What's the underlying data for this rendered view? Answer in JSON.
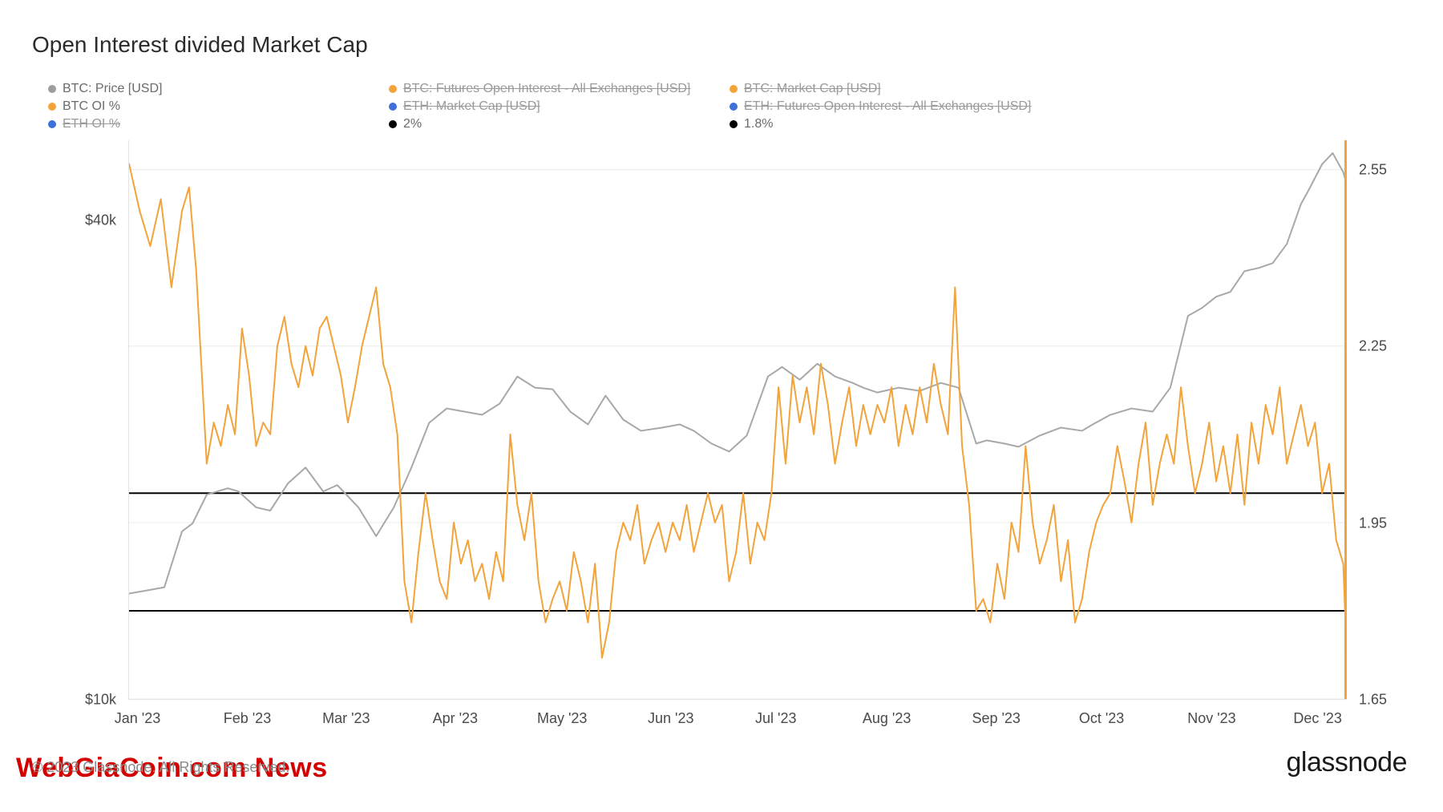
{
  "title": "Open Interest divided Market Cap",
  "watermark": "WebGiaCoin.com News",
  "copyright": "© 2023 Glassnode. All Rights Reserved.",
  "brand": "glassnode",
  "legend_layout": {
    "col_widths_pct": [
      25,
      25,
      25,
      25
    ]
  },
  "legend": [
    [
      {
        "label": "BTC: Price [USD]",
        "color": "#9e9e9e",
        "struck": false
      },
      {
        "label": "BTC: Futures Open Interest - All Exchanges [USD]",
        "color": "#f2a33a",
        "struck": true
      },
      {
        "label": "BTC: Market Cap [USD]",
        "color": "#f2a33a",
        "struck": true
      }
    ],
    [
      {
        "label": "BTC OI %",
        "color": "#f2a33a",
        "struck": false
      },
      {
        "label": "ETH: Market Cap [USD]",
        "color": "#3f6fd8",
        "struck": true
      },
      {
        "label": "ETH: Futures Open Interest - All Exchanges [USD]",
        "color": "#3f6fd8",
        "struck": true
      }
    ],
    [
      {
        "label": "ETH OI %",
        "color": "#3f6fd8",
        "struck": true
      },
      {
        "label": "2%",
        "color": "#000000",
        "struck": false
      },
      {
        "label": "1.8%",
        "color": "#000000",
        "struck": false
      }
    ]
  ],
  "chart": {
    "type": "line",
    "background_color": "#ffffff",
    "grid_color": "#ececec",
    "grid_width": 1,
    "x": {
      "domain": [
        0,
        345
      ],
      "ticks": [
        0,
        31,
        59,
        90,
        120,
        151,
        181,
        212,
        243,
        273,
        304,
        334
      ],
      "labels": [
        "Jan '23",
        "Feb '23",
        "Mar '23",
        "Apr '23",
        "May '23",
        "Jun '23",
        "Jul '23",
        "Aug '23",
        "Sep '23",
        "Oct '23",
        "Nov '23",
        "Dec '23"
      ]
    },
    "y_left": {
      "domain": [
        10000,
        45000
      ],
      "ticks": [
        10000,
        40000
      ],
      "labels": [
        "$10k",
        "$40k"
      ]
    },
    "y_right": {
      "domain": [
        1.65,
        2.6
      ],
      "ticks": [
        1.65,
        1.95,
        2.25,
        2.55
      ],
      "labels": [
        "1.65",
        "1.95",
        "2.25",
        "2.55"
      ]
    },
    "hlines": [
      {
        "value": 2.0,
        "axis": "right",
        "color": "#000000",
        "width": 2
      },
      {
        "value": 1.8,
        "axis": "right",
        "color": "#000000",
        "width": 2
      }
    ],
    "right_accent": {
      "color": "#f2a33a",
      "width": 3
    },
    "series": [
      {
        "name": "BTC: Price [USD]",
        "axis": "left",
        "color": "#a8a8a8",
        "width": 2,
        "points": [
          [
            0,
            16600
          ],
          [
            5,
            16800
          ],
          [
            10,
            17000
          ],
          [
            15,
            20500
          ],
          [
            18,
            21000
          ],
          [
            22,
            22800
          ],
          [
            28,
            23200
          ],
          [
            31,
            23000
          ],
          [
            36,
            22000
          ],
          [
            40,
            21800
          ],
          [
            45,
            23500
          ],
          [
            50,
            24500
          ],
          [
            55,
            23000
          ],
          [
            59,
            23400
          ],
          [
            65,
            22000
          ],
          [
            70,
            20200
          ],
          [
            75,
            22000
          ],
          [
            80,
            24500
          ],
          [
            85,
            27300
          ],
          [
            90,
            28200
          ],
          [
            95,
            28000
          ],
          [
            100,
            27800
          ],
          [
            105,
            28500
          ],
          [
            110,
            30200
          ],
          [
            115,
            29500
          ],
          [
            120,
            29400
          ],
          [
            125,
            28000
          ],
          [
            130,
            27200
          ],
          [
            135,
            29000
          ],
          [
            140,
            27500
          ],
          [
            145,
            26800
          ],
          [
            151,
            27000
          ],
          [
            156,
            27200
          ],
          [
            160,
            26800
          ],
          [
            165,
            26000
          ],
          [
            170,
            25500
          ],
          [
            175,
            26500
          ],
          [
            181,
            30200
          ],
          [
            185,
            30800
          ],
          [
            190,
            30000
          ],
          [
            195,
            31000
          ],
          [
            200,
            30200
          ],
          [
            205,
            29800
          ],
          [
            208,
            29500
          ],
          [
            212,
            29200
          ],
          [
            218,
            29500
          ],
          [
            224,
            29300
          ],
          [
            230,
            29800
          ],
          [
            235,
            29500
          ],
          [
            240,
            26000
          ],
          [
            243,
            26200
          ],
          [
            248,
            26000
          ],
          [
            252,
            25800
          ],
          [
            258,
            26500
          ],
          [
            264,
            27000
          ],
          [
            270,
            26800
          ],
          [
            273,
            27200
          ],
          [
            278,
            27800
          ],
          [
            284,
            28200
          ],
          [
            290,
            28000
          ],
          [
            295,
            29500
          ],
          [
            300,
            34000
          ],
          [
            304,
            34500
          ],
          [
            308,
            35200
          ],
          [
            312,
            35500
          ],
          [
            316,
            36800
          ],
          [
            320,
            37000
          ],
          [
            324,
            37300
          ],
          [
            328,
            38500
          ],
          [
            332,
            41000
          ],
          [
            334,
            41800
          ],
          [
            338,
            43500
          ],
          [
            341,
            44200
          ],
          [
            344,
            43000
          ],
          [
            345,
            42200
          ]
        ]
      },
      {
        "name": "BTC OI %",
        "axis": "right",
        "color": "#f2a33a",
        "width": 2,
        "points": [
          [
            0,
            2.56
          ],
          [
            3,
            2.48
          ],
          [
            6,
            2.42
          ],
          [
            9,
            2.5
          ],
          [
            12,
            2.35
          ],
          [
            15,
            2.48
          ],
          [
            17,
            2.52
          ],
          [
            19,
            2.38
          ],
          [
            22,
            2.05
          ],
          [
            24,
            2.12
          ],
          [
            26,
            2.08
          ],
          [
            28,
            2.15
          ],
          [
            30,
            2.1
          ],
          [
            32,
            2.28
          ],
          [
            34,
            2.2
          ],
          [
            36,
            2.08
          ],
          [
            38,
            2.12
          ],
          [
            40,
            2.1
          ],
          [
            42,
            2.25
          ],
          [
            44,
            2.3
          ],
          [
            46,
            2.22
          ],
          [
            48,
            2.18
          ],
          [
            50,
            2.25
          ],
          [
            52,
            2.2
          ],
          [
            54,
            2.28
          ],
          [
            56,
            2.3
          ],
          [
            58,
            2.25
          ],
          [
            60,
            2.2
          ],
          [
            62,
            2.12
          ],
          [
            64,
            2.18
          ],
          [
            66,
            2.25
          ],
          [
            68,
            2.3
          ],
          [
            70,
            2.35
          ],
          [
            72,
            2.22
          ],
          [
            74,
            2.18
          ],
          [
            76,
            2.1
          ],
          [
            78,
            1.85
          ],
          [
            80,
            1.78
          ],
          [
            82,
            1.9
          ],
          [
            84,
            2.0
          ],
          [
            86,
            1.92
          ],
          [
            88,
            1.85
          ],
          [
            90,
            1.82
          ],
          [
            92,
            1.95
          ],
          [
            94,
            1.88
          ],
          [
            96,
            1.92
          ],
          [
            98,
            1.85
          ],
          [
            100,
            1.88
          ],
          [
            102,
            1.82
          ],
          [
            104,
            1.9
          ],
          [
            106,
            1.85
          ],
          [
            108,
            2.1
          ],
          [
            110,
            1.98
          ],
          [
            112,
            1.92
          ],
          [
            114,
            2.0
          ],
          [
            116,
            1.85
          ],
          [
            118,
            1.78
          ],
          [
            120,
            1.82
          ],
          [
            122,
            1.85
          ],
          [
            124,
            1.8
          ],
          [
            126,
            1.9
          ],
          [
            128,
            1.85
          ],
          [
            130,
            1.78
          ],
          [
            132,
            1.88
          ],
          [
            134,
            1.72
          ],
          [
            136,
            1.78
          ],
          [
            138,
            1.9
          ],
          [
            140,
            1.95
          ],
          [
            142,
            1.92
          ],
          [
            144,
            1.98
          ],
          [
            146,
            1.88
          ],
          [
            148,
            1.92
          ],
          [
            150,
            1.95
          ],
          [
            152,
            1.9
          ],
          [
            154,
            1.95
          ],
          [
            156,
            1.92
          ],
          [
            158,
            1.98
          ],
          [
            160,
            1.9
          ],
          [
            162,
            1.95
          ],
          [
            164,
            2.0
          ],
          [
            166,
            1.95
          ],
          [
            168,
            1.98
          ],
          [
            170,
            1.85
          ],
          [
            172,
            1.9
          ],
          [
            174,
            2.0
          ],
          [
            176,
            1.88
          ],
          [
            178,
            1.95
          ],
          [
            180,
            1.92
          ],
          [
            182,
            2.0
          ],
          [
            184,
            2.18
          ],
          [
            186,
            2.05
          ],
          [
            188,
            2.2
          ],
          [
            190,
            2.12
          ],
          [
            192,
            2.18
          ],
          [
            194,
            2.1
          ],
          [
            196,
            2.22
          ],
          [
            198,
            2.15
          ],
          [
            200,
            2.05
          ],
          [
            202,
            2.12
          ],
          [
            204,
            2.18
          ],
          [
            206,
            2.08
          ],
          [
            208,
            2.15
          ],
          [
            210,
            2.1
          ],
          [
            212,
            2.15
          ],
          [
            214,
            2.12
          ],
          [
            216,
            2.18
          ],
          [
            218,
            2.08
          ],
          [
            220,
            2.15
          ],
          [
            222,
            2.1
          ],
          [
            224,
            2.18
          ],
          [
            226,
            2.12
          ],
          [
            228,
            2.22
          ],
          [
            230,
            2.15
          ],
          [
            232,
            2.1
          ],
          [
            234,
            2.35
          ],
          [
            236,
            2.08
          ],
          [
            238,
            1.98
          ],
          [
            240,
            1.8
          ],
          [
            242,
            1.82
          ],
          [
            244,
            1.78
          ],
          [
            246,
            1.88
          ],
          [
            248,
            1.82
          ],
          [
            250,
            1.95
          ],
          [
            252,
            1.9
          ],
          [
            254,
            2.08
          ],
          [
            256,
            1.95
          ],
          [
            258,
            1.88
          ],
          [
            260,
            1.92
          ],
          [
            262,
            1.98
          ],
          [
            264,
            1.85
          ],
          [
            266,
            1.92
          ],
          [
            268,
            1.78
          ],
          [
            270,
            1.82
          ],
          [
            272,
            1.9
          ],
          [
            274,
            1.95
          ],
          [
            276,
            1.98
          ],
          [
            278,
            2.0
          ],
          [
            280,
            2.08
          ],
          [
            282,
            2.02
          ],
          [
            284,
            1.95
          ],
          [
            286,
            2.05
          ],
          [
            288,
            2.12
          ],
          [
            290,
            1.98
          ],
          [
            292,
            2.05
          ],
          [
            294,
            2.1
          ],
          [
            296,
            2.05
          ],
          [
            298,
            2.18
          ],
          [
            300,
            2.08
          ],
          [
            302,
            2.0
          ],
          [
            304,
            2.05
          ],
          [
            306,
            2.12
          ],
          [
            308,
            2.02
          ],
          [
            310,
            2.08
          ],
          [
            312,
            2.0
          ],
          [
            314,
            2.1
          ],
          [
            316,
            1.98
          ],
          [
            318,
            2.12
          ],
          [
            320,
            2.05
          ],
          [
            322,
            2.15
          ],
          [
            324,
            2.1
          ],
          [
            326,
            2.18
          ],
          [
            328,
            2.05
          ],
          [
            330,
            2.1
          ],
          [
            332,
            2.15
          ],
          [
            334,
            2.08
          ],
          [
            336,
            2.12
          ],
          [
            338,
            2.0
          ],
          [
            340,
            2.05
          ],
          [
            342,
            1.92
          ],
          [
            344,
            1.88
          ],
          [
            345,
            1.72
          ]
        ]
      }
    ]
  }
}
